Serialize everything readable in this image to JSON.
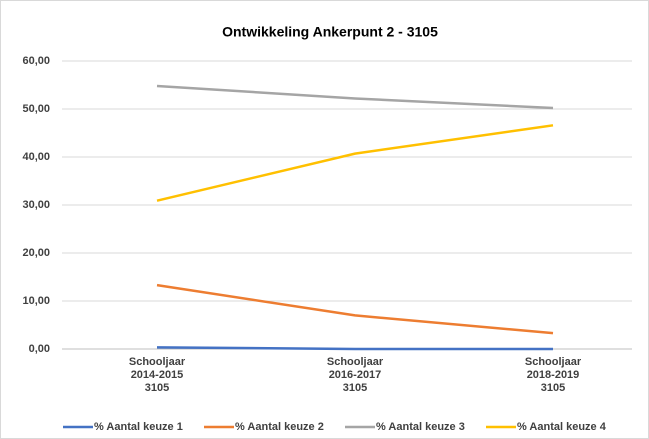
{
  "chart_data": {
    "type": "line",
    "title": "Ontwikkeling Ankerpunt 2 - 3105",
    "categories": [
      "Schooljaar\n2014-2015\n3105",
      "Schooljaar\n2016-2017\n3105",
      "Schooljaar\n2018-2019\n3105"
    ],
    "series": [
      {
        "name": "% Aantal keuze 1",
        "color": "#4472c4",
        "values": [
          0.35,
          0,
          0
        ]
      },
      {
        "name": "% Aantal keuze 2",
        "color": "#ed7d31",
        "values": [
          13.3,
          7.0,
          3.3
        ]
      },
      {
        "name": "% Aantal keuze 3",
        "color": "#a5a5a5",
        "values": [
          54.8,
          52.2,
          50.2
        ]
      },
      {
        "name": "% Aantal keuze 4",
        "color": "#ffc000",
        "values": [
          30.9,
          40.7,
          46.6
        ]
      }
    ],
    "ylim": [
      0,
      60
    ],
    "yticks": [
      {
        "value": 0,
        "label": "0,00"
      },
      {
        "value": 10,
        "label": "10,00"
      },
      {
        "value": 20,
        "label": "20,00"
      },
      {
        "value": 30,
        "label": "30,00"
      },
      {
        "value": 40,
        "label": "40,00"
      },
      {
        "value": 50,
        "label": "50,00"
      },
      {
        "value": 60,
        "label": "60,00"
      }
    ],
    "grid": true,
    "legend": "bottom"
  }
}
